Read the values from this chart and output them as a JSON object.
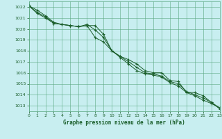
{
  "title": "Graphe pression niveau de la mer (hPa)",
  "bg_color": "#c8eef0",
  "grid_color": "#5ba882",
  "line_color": "#1a5e2a",
  "xlim": [
    0,
    23
  ],
  "ylim": [
    1012.5,
    1022.5
  ],
  "xticks": [
    0,
    1,
    2,
    3,
    4,
    5,
    6,
    7,
    8,
    9,
    10,
    11,
    12,
    13,
    14,
    15,
    16,
    17,
    18,
    19,
    20,
    21,
    22,
    23
  ],
  "yticks": [
    1013,
    1014,
    1015,
    1016,
    1017,
    1018,
    1019,
    1020,
    1021,
    1022
  ],
  "series": [
    [
      1022.1,
      1021.7,
      1021.2,
      1020.6,
      1020.4,
      1020.3,
      1020.2,
      1020.3,
      1020.3,
      1019.5,
      1018.0,
      1017.5,
      1017.2,
      1016.8,
      1016.2,
      1016.0,
      1016.0,
      1015.3,
      1015.2,
      1014.2,
      1014.2,
      1013.9,
      1013.3,
      1012.7
    ],
    [
      1022.1,
      1021.5,
      1021.1,
      1020.5,
      1020.4,
      1020.3,
      1020.2,
      1020.4,
      1019.9,
      1019.2,
      1018.0,
      1017.5,
      1017.0,
      1016.5,
      1016.0,
      1015.9,
      1015.7,
      1015.2,
      1015.0,
      1014.3,
      1014.0,
      1013.7,
      1013.3,
      1012.8
    ],
    [
      1022.1,
      1021.4,
      1021.0,
      1020.5,
      1020.4,
      1020.3,
      1020.2,
      1020.3,
      1019.2,
      1018.8,
      1018.0,
      1017.4,
      1016.8,
      1016.2,
      1015.9,
      1015.8,
      1015.6,
      1015.1,
      1014.8,
      1014.2,
      1013.9,
      1013.5,
      1013.2,
      1012.8
    ]
  ]
}
